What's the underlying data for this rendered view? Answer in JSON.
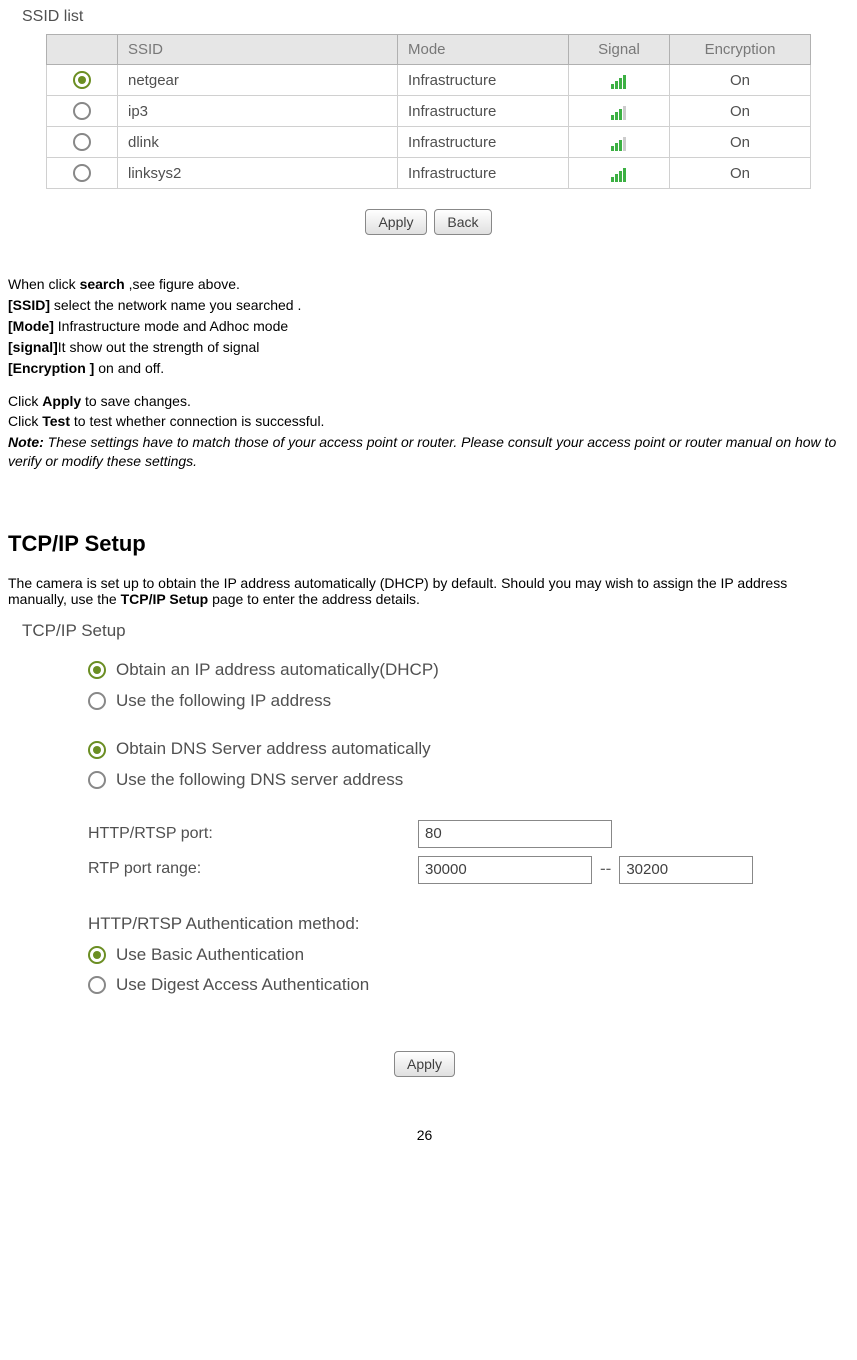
{
  "ssid_section": {
    "title": "SSID list",
    "headers": {
      "ssid": "SSID",
      "mode": "Mode",
      "signal": "Signal",
      "encryption": "Encryption"
    },
    "rows": [
      {
        "selected": true,
        "ssid": "netgear",
        "mode": "Infrastructure",
        "signal": "strong",
        "encryption": "On"
      },
      {
        "selected": false,
        "ssid": "ip3",
        "mode": "Infrastructure",
        "signal": "weak",
        "encryption": "On"
      },
      {
        "selected": false,
        "ssid": "dlink",
        "mode": "Infrastructure",
        "signal": "weak",
        "encryption": "On"
      },
      {
        "selected": false,
        "ssid": "linksys2",
        "mode": "Infrastructure",
        "signal": "strong",
        "encryption": "On"
      }
    ],
    "buttons": {
      "apply": "Apply",
      "back": "Back"
    }
  },
  "text": {
    "p1a": "When click ",
    "p1b": "search",
    "p1c": " ,see figure above.",
    "p2a": "[SSID]",
    "p2b": " select the network name you searched .",
    "p3a": "[Mode]",
    "p3b": " Infrastructure mode and Adhoc mode",
    "p4a": "[signal]",
    "p4b": "It show out the strength of signal",
    "p5a": "[Encryption ]",
    "p5b": " on and off.",
    "p6a": "Click ",
    "p6b": "Apply",
    "p6c": " to save changes.",
    "p7a": "Click ",
    "p7b": "Test",
    "p7c": " to test whether connection is successful.",
    "note_label": "Note:",
    "note_body": " These settings have to match those of your access point or router. Please consult your access point or router manual on how to verify or modify these settings."
  },
  "tcpip": {
    "heading": "TCP/IP Setup",
    "intro_a": "The camera is set up to obtain the IP address automatically (DHCP) by default. Should you may wish to assign the IP address manually, use the ",
    "intro_b": "TCP/IP Setup",
    "intro_c": " page to enter the address details.",
    "panel_title": "TCP/IP Setup",
    "ip_auto": "Obtain an IP address automatically(DHCP)",
    "ip_manual": "Use the following IP address",
    "dns_auto": "Obtain DNS Server address automatically",
    "dns_manual": "Use the following DNS server address",
    "http_label": "HTTP/RTSP port:",
    "http_value": "80",
    "rtp_label": "RTP port range:",
    "rtp_from": "30000",
    "rtp_sep": "--",
    "rtp_to": "30200",
    "auth_heading": "HTTP/RTSP Authentication method:",
    "auth_basic": "Use Basic Authentication",
    "auth_digest": "Use Digest Access Authentication",
    "apply": "Apply"
  },
  "page_number": "26"
}
